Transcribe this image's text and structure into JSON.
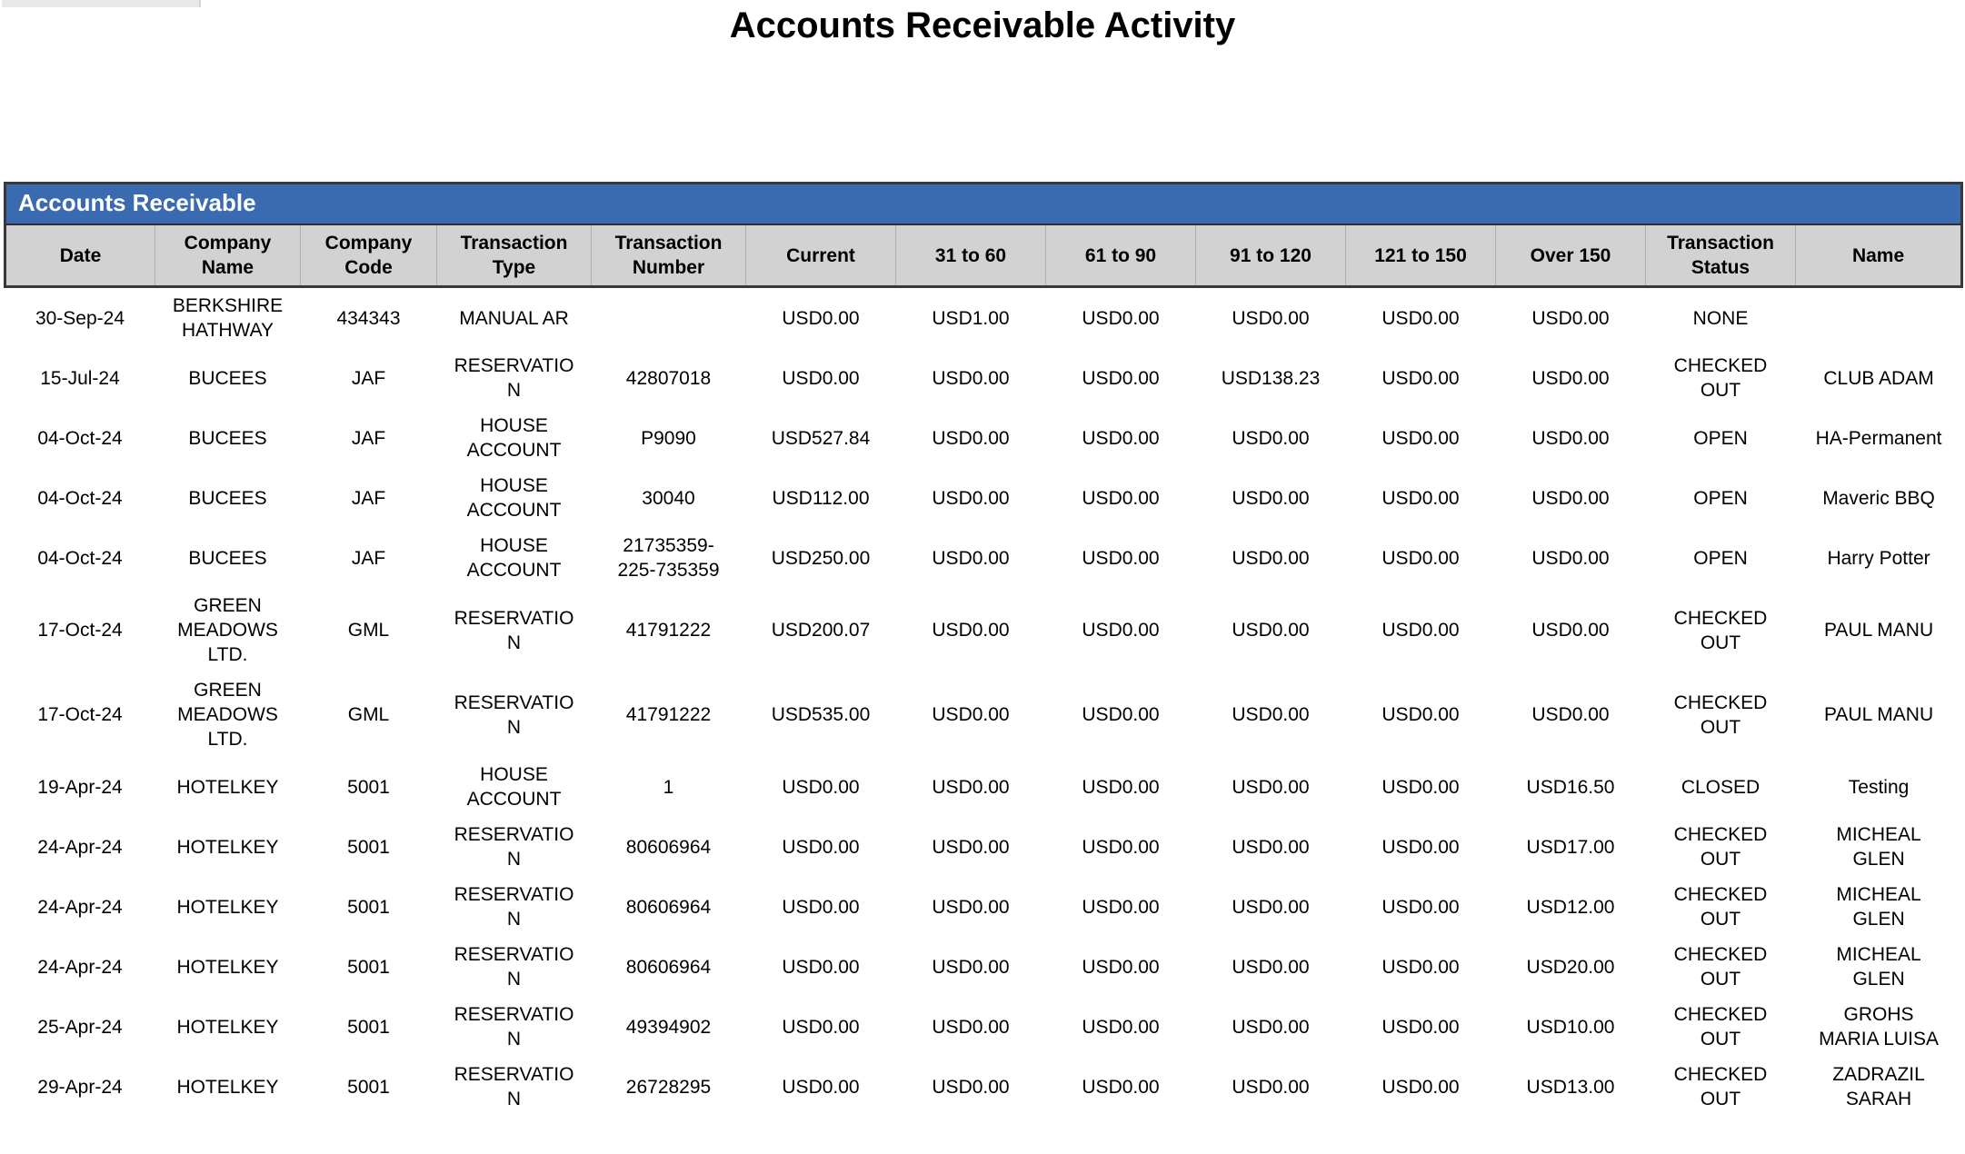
{
  "page": {
    "title": "Accounts Receivable Activity"
  },
  "table": {
    "section_title": "Accounts Receivable",
    "columns": [
      "Date",
      "Company Name",
      "Company Code",
      "Transaction Type",
      "Transaction Number",
      "Current",
      "31 to 60",
      "61 to 90",
      "91 to 120",
      "121 to 150",
      "Over 150",
      "Transaction Status",
      "Name"
    ],
    "rows": [
      [
        "30-Sep-24",
        "BERKSHIRE HATHWAY",
        "434343",
        "MANUAL AR",
        "",
        "USD0.00",
        "USD1.00",
        "USD0.00",
        "USD0.00",
        "USD0.00",
        "USD0.00",
        "NONE",
        ""
      ],
      [
        "15-Jul-24",
        "BUCEES",
        "JAF",
        "RESERVATION",
        "42807018",
        "USD0.00",
        "USD0.00",
        "USD0.00",
        "USD138.23",
        "USD0.00",
        "USD0.00",
        "CHECKED OUT",
        "CLUB ADAM"
      ],
      [
        "04-Oct-24",
        "BUCEES",
        "JAF",
        "HOUSE ACCOUNT",
        "P9090",
        "USD527.84",
        "USD0.00",
        "USD0.00",
        "USD0.00",
        "USD0.00",
        "USD0.00",
        "OPEN",
        "HA-Permanent"
      ],
      [
        "04-Oct-24",
        "BUCEES",
        "JAF",
        "HOUSE ACCOUNT",
        "30040",
        "USD112.00",
        "USD0.00",
        "USD0.00",
        "USD0.00",
        "USD0.00",
        "USD0.00",
        "OPEN",
        "Maveric BBQ"
      ],
      [
        "04-Oct-24",
        "BUCEES",
        "JAF",
        "HOUSE ACCOUNT",
        "21735359-225-735359",
        "USD250.00",
        "USD0.00",
        "USD0.00",
        "USD0.00",
        "USD0.00",
        "USD0.00",
        "OPEN",
        "Harry Potter"
      ],
      [
        "17-Oct-24",
        "GREEN MEADOWS LTD.",
        "GML",
        "RESERVATION",
        "41791222",
        "USD200.07",
        "USD0.00",
        "USD0.00",
        "USD0.00",
        "USD0.00",
        "USD0.00",
        "CHECKED OUT",
        "PAUL MANU"
      ],
      [
        "17-Oct-24",
        "GREEN MEADOWS LTD.",
        "GML",
        "RESERVATION",
        "41791222",
        "USD535.00",
        "USD0.00",
        "USD0.00",
        "USD0.00",
        "USD0.00",
        "USD0.00",
        "CHECKED OUT",
        "PAUL MANU"
      ],
      [
        "19-Apr-24",
        "HOTELKEY",
        "5001",
        "HOUSE ACCOUNT",
        "1",
        "USD0.00",
        "USD0.00",
        "USD0.00",
        "USD0.00",
        "USD0.00",
        "USD16.50",
        "CLOSED",
        "Testing"
      ],
      [
        "24-Apr-24",
        "HOTELKEY",
        "5001",
        "RESERVATION",
        "80606964",
        "USD0.00",
        "USD0.00",
        "USD0.00",
        "USD0.00",
        "USD0.00",
        "USD17.00",
        "CHECKED OUT",
        "MICHEAL GLEN"
      ],
      [
        "24-Apr-24",
        "HOTELKEY",
        "5001",
        "RESERVATION",
        "80606964",
        "USD0.00",
        "USD0.00",
        "USD0.00",
        "USD0.00",
        "USD0.00",
        "USD12.00",
        "CHECKED OUT",
        "MICHEAL GLEN"
      ],
      [
        "24-Apr-24",
        "HOTELKEY",
        "5001",
        "RESERVATION",
        "80606964",
        "USD0.00",
        "USD0.00",
        "USD0.00",
        "USD0.00",
        "USD0.00",
        "USD20.00",
        "CHECKED OUT",
        "MICHEAL GLEN"
      ],
      [
        "25-Apr-24",
        "HOTELKEY",
        "5001",
        "RESERVATION",
        "49394902",
        "USD0.00",
        "USD0.00",
        "USD0.00",
        "USD0.00",
        "USD0.00",
        "USD10.00",
        "CHECKED OUT",
        "GROHS MARIA LUISA"
      ],
      [
        "29-Apr-24",
        "HOTELKEY",
        "5001",
        "RESERVATION",
        "26728295",
        "USD0.00",
        "USD0.00",
        "USD0.00",
        "USD0.00",
        "USD0.00",
        "USD13.00",
        "CHECKED OUT",
        "ZADRAZIL SARAH"
      ]
    ]
  },
  "colors": {
    "section_header_blue": "#3a6bb0",
    "column_header_gray": "#d2d2d2",
    "border_dark": "#383838"
  }
}
